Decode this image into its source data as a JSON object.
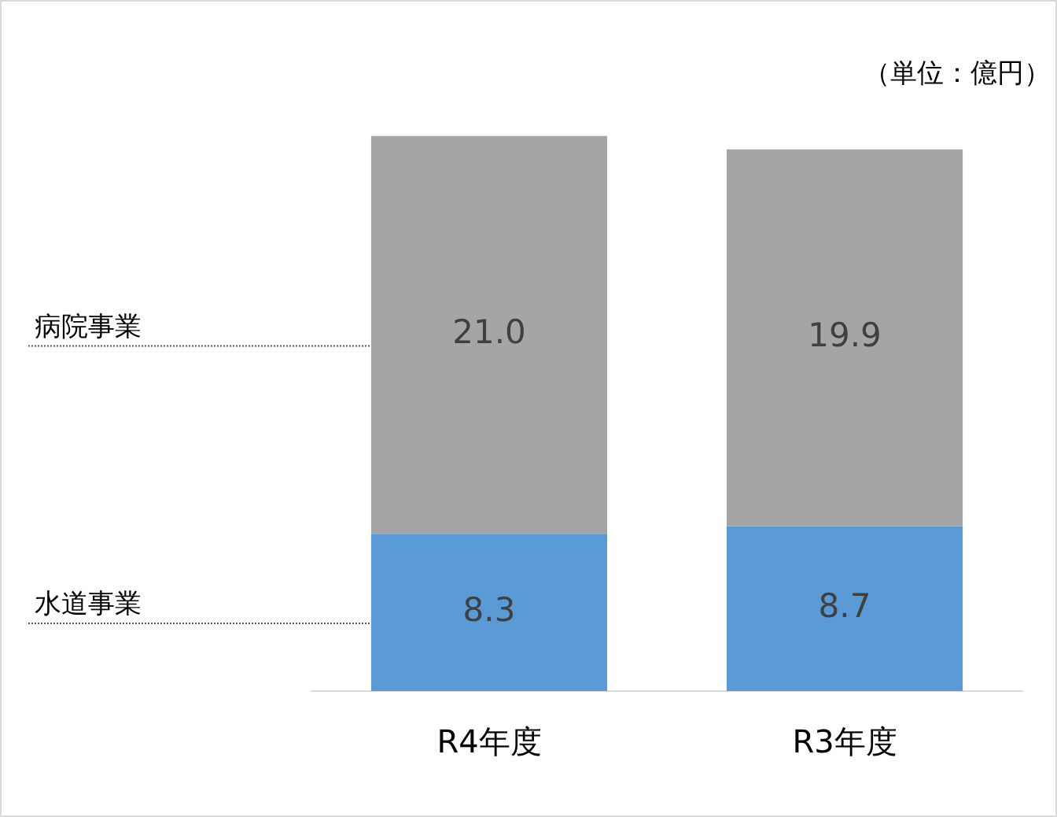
{
  "chart_data": {
    "type": "bar",
    "stacked": true,
    "categories": [
      "R4年度",
      "R3年度"
    ],
    "series": [
      {
        "name": "水道事業",
        "color": "#5b9bd5",
        "values": [
          8.3,
          8.7
        ],
        "value_labels": [
          "8.3",
          "8.7"
        ]
      },
      {
        "name": "病院事業",
        "color": "#a5a5a5",
        "values": [
          21.0,
          19.9
        ],
        "value_labels": [
          "21.0",
          "19.9"
        ]
      }
    ],
    "grid": false,
    "legend": false,
    "annotations": [
      "（単位：億円）"
    ]
  }
}
